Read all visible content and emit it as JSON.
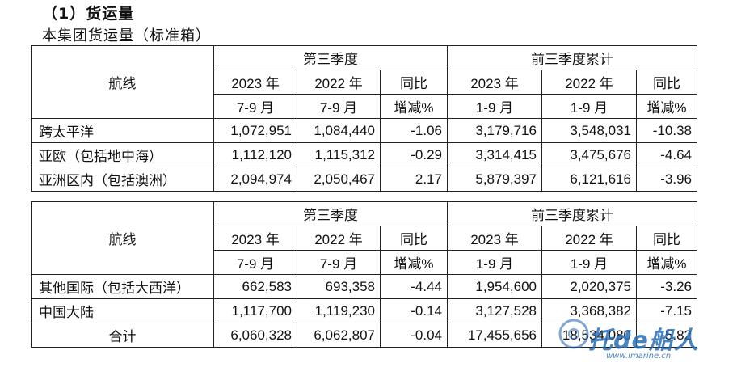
{
  "heading": "（1）货运量",
  "subheading": "本集团货运量（标准箱）",
  "table_header": {
    "route": "航线",
    "q3": "第三季度",
    "ytd": "前三季度累计",
    "y2023": "2023 年",
    "y2022": "2022 年",
    "m79": "7-9 月",
    "m19": "1-9 月",
    "yoy_1": "同比",
    "yoy_2": "增减%"
  },
  "table1_rows": [
    {
      "route": "跨太平洋",
      "q3_2023": "1,072,951",
      "q3_2022": "1,084,440",
      "q3_yoy": "-1.06",
      "ytd_2023": "3,179,716",
      "ytd_2022": "3,548,031",
      "ytd_yoy": "-10.38"
    },
    {
      "route": "亚欧（包括地中海）",
      "q3_2023": "1,112,120",
      "q3_2022": "1,115,312",
      "q3_yoy": "-0.29",
      "ytd_2023": "3,314,415",
      "ytd_2022": "3,475,676",
      "ytd_yoy": "-4.64"
    },
    {
      "route": "亚洲区内（包括澳洲）",
      "q3_2023": "2,094,974",
      "q3_2022": "2,050,467",
      "q3_yoy": "2.17",
      "ytd_2023": "5,879,397",
      "ytd_2022": "6,121,616",
      "ytd_yoy": "-3.96"
    }
  ],
  "table2_rows": [
    {
      "route": "其他国际（包括大西洋）",
      "q3_2023": "662,583",
      "q3_2022": "693,358",
      "q3_yoy": "-4.44",
      "ytd_2023": "1,954,600",
      "ytd_2022": "2,020,375",
      "ytd_yoy": "-3.26"
    },
    {
      "route": "中国大陆",
      "q3_2023": "1,117,700",
      "q3_2022": "1,119,230",
      "q3_yoy": "-0.14",
      "ytd_2023": "3,127,528",
      "ytd_2022": "3,368,382",
      "ytd_yoy": "-7.15"
    },
    {
      "route": "合计",
      "q3_2023": "6,060,328",
      "q3_2022": "6,062,807",
      "q3_yoy": "-0.04",
      "ytd_2023": "17,455,656",
      "ytd_2022": "18,534,080",
      "ytd_yoy": "-5.82"
    }
  ],
  "watermark": {
    "logo": "托de船人",
    "url": "www.imarine.cn"
  },
  "colors": {
    "border": "#222222",
    "watermark": "#2a6fb8"
  }
}
